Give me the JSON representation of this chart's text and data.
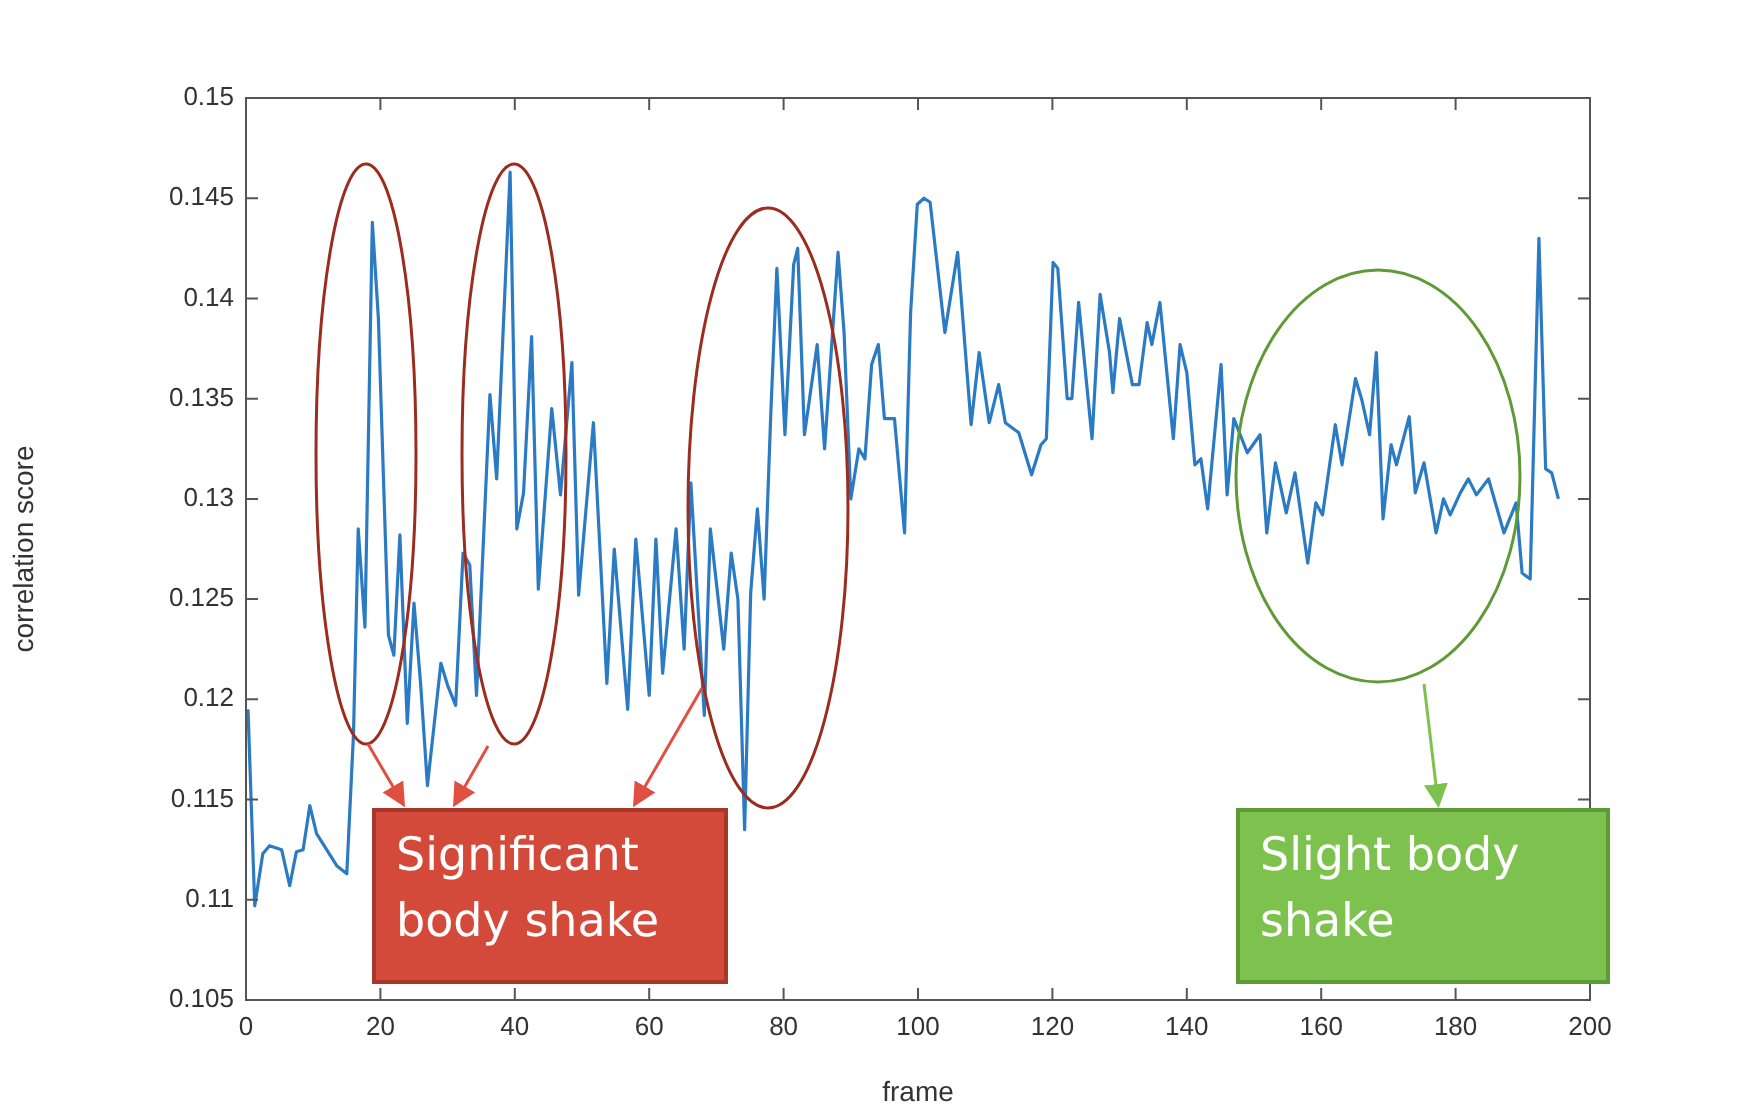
{
  "chart_data": {
    "type": "line",
    "xlabel": "frame",
    "ylabel": "correlation score",
    "xlim": [
      0,
      200
    ],
    "xticks": [
      0,
      20,
      40,
      60,
      80,
      100,
      120,
      140,
      160,
      180,
      200
    ],
    "ylim": [
      0.105,
      0.15
    ],
    "yticks": [
      0.105,
      0.11,
      0.115,
      0.12,
      0.125,
      0.13,
      0.135,
      0.14,
      0.145,
      0.15
    ],
    "grid": false,
    "legend": false,
    "marker": "none",
    "line_style": "solid",
    "annotations": [
      "Significant body shake",
      "Slight body shake"
    ],
    "series": [
      {
        "color": "#2b7bc4",
        "x": [
          0.3,
          1.3,
          2.5,
          3.5,
          5.3,
          6.5,
          7.5,
          8.5,
          9.5,
          10.5,
          13.5,
          15,
          16,
          16.7,
          17.7,
          18.8,
          19.7,
          21.2,
          22,
          22.9,
          24,
          25,
          26,
          27,
          29,
          30,
          31.2,
          32.3,
          33.3,
          34.3,
          36.3,
          37.3,
          39.3,
          40.3,
          41.3,
          42.5,
          43.5,
          45.5,
          46.8,
          48.5,
          49.5,
          51.7,
          53.7,
          54.8,
          56.8,
          58,
          60,
          61,
          62,
          64,
          65.2,
          66.2,
          68.2,
          69.1,
          71.1,
          72.2,
          73.2,
          74.2,
          75.1,
          76.1,
          77.1,
          78.1,
          79,
          80.2,
          81.5,
          82.1,
          83.1,
          85,
          86.1,
          88.1,
          89,
          90,
          91.2,
          92.1,
          93.1,
          94.1,
          95,
          96.5,
          98,
          98.9,
          99.9,
          100.9,
          101.8,
          104,
          105.9,
          107.9,
          109.1,
          110.6,
          112,
          113,
          115,
          116.9,
          118.3,
          119.1,
          120.1,
          120.8,
          122.2,
          122.9,
          123.9,
          125.9,
          127.1,
          128.5,
          129,
          130,
          131.9,
          132.9,
          134.1,
          134.8,
          136,
          138,
          139,
          140,
          141.2,
          142.1,
          143.1,
          145.1,
          146,
          147,
          149,
          150.9,
          151.9,
          153.2,
          154.8,
          156.1,
          158,
          159.2,
          160.2,
          162.1,
          163.1,
          165.1,
          166,
          167.2,
          168.2,
          169.2,
          170.4,
          171.2,
          173.1,
          174,
          175.3,
          177.1,
          178.2,
          179.2,
          180.7,
          181.9,
          183.1,
          184.9,
          187.2,
          189,
          189.9,
          191.1,
          192.4,
          193.4,
          194.3,
          195.3
        ],
        "values": [
          0.1195,
          0.1097,
          0.1123,
          0.1127,
          0.1125,
          0.1107,
          0.1124,
          0.1125,
          0.1147,
          0.1133,
          0.1117,
          0.1113,
          0.1183,
          0.1285,
          0.1236,
          0.1438,
          0.139,
          0.1232,
          0.1222,
          0.1282,
          0.1188,
          0.1248,
          0.1207,
          0.1157,
          0.1218,
          0.1207,
          0.1197,
          0.1273,
          0.1267,
          0.1202,
          0.1352,
          0.131,
          0.1463,
          0.1285,
          0.1303,
          0.1381,
          0.1255,
          0.1345,
          0.1302,
          0.1368,
          0.1252,
          0.1338,
          0.1208,
          0.1275,
          0.1195,
          0.128,
          0.1202,
          0.128,
          0.1213,
          0.1285,
          0.1225,
          0.1308,
          0.1192,
          0.1285,
          0.1225,
          0.1273,
          0.125,
          0.1135,
          0.1253,
          0.1295,
          0.125,
          0.1343,
          0.1415,
          0.1332,
          0.1417,
          0.1425,
          0.1332,
          0.1377,
          0.1325,
          0.1423,
          0.1383,
          0.13,
          0.1325,
          0.132,
          0.1367,
          0.1377,
          0.134,
          0.134,
          0.1283,
          0.1393,
          0.1447,
          0.145,
          0.1448,
          0.1383,
          0.1423,
          0.1337,
          0.1373,
          0.1338,
          0.1357,
          0.1338,
          0.1333,
          0.1312,
          0.1327,
          0.133,
          0.1418,
          0.1415,
          0.135,
          0.135,
          0.1398,
          0.133,
          0.1402,
          0.1373,
          0.1353,
          0.139,
          0.1357,
          0.1357,
          0.1388,
          0.1377,
          0.1398,
          0.133,
          0.1377,
          0.1363,
          0.1317,
          0.132,
          0.1295,
          0.1367,
          0.1302,
          0.134,
          0.1323,
          0.1332,
          0.1283,
          0.1318,
          0.1293,
          0.1313,
          0.1268,
          0.1298,
          0.1292,
          0.1337,
          0.1317,
          0.136,
          0.135,
          0.1332,
          0.1373,
          0.129,
          0.1327,
          0.1317,
          0.1341,
          0.1303,
          0.1318,
          0.1283,
          0.13,
          0.1292,
          0.1303,
          0.131,
          0.1302,
          0.131,
          0.1283,
          0.1298,
          0.1263,
          0.126,
          0.143,
          0.1315,
          0.1313,
          0.13
        ]
      }
    ]
  }
}
